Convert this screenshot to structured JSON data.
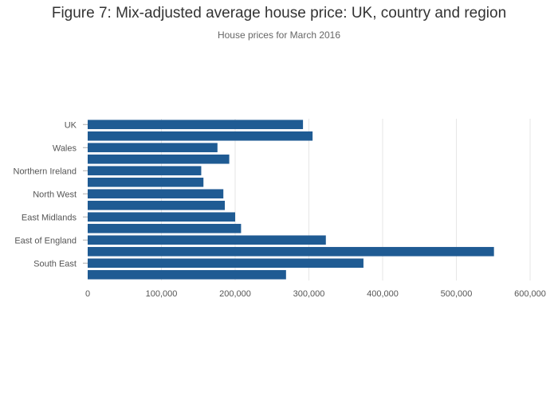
{
  "chart_data": {
    "type": "bar",
    "orientation": "horizontal",
    "title": "Figure 7: Mix-adjusted average house price: UK, country and region",
    "subtitle": "House prices for March 2016",
    "categories": [
      "UK",
      "",
      "Wales",
      "",
      "Northern Ireland",
      "",
      "North West",
      "",
      "East Midlands",
      "",
      "East of England",
      "",
      "South East",
      ""
    ],
    "values": [
      292000,
      305000,
      176000,
      192000,
      154000,
      157000,
      184000,
      186000,
      200000,
      208000,
      323000,
      551000,
      374000,
      269000
    ],
    "xlim": [
      0,
      600000
    ],
    "x_ticks": [
      0,
      100000,
      200000,
      300000,
      400000,
      500000,
      600000
    ],
    "x_tick_labels": [
      "0",
      "100,000",
      "200,000",
      "300,000",
      "400,000",
      "500,000",
      "600,000"
    ],
    "bar_color": "#1f5b93",
    "grid_color": "#e6e6e6",
    "grid": true,
    "legend": "none"
  }
}
